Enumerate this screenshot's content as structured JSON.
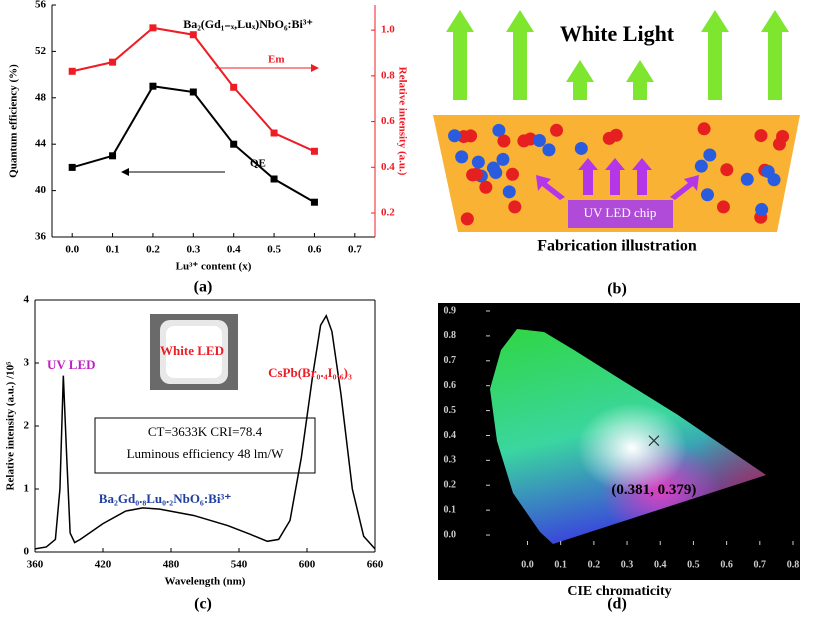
{
  "chart_data": [
    {
      "type": "line",
      "label": "(a)",
      "title": "Ba₂(Gd₁₋ₓ,Luₓ)NbO₆:Bi³⁺",
      "xlabel": "Lu³⁺ content (x)",
      "ylabel": "Quantum efficiency (%)",
      "y2label": "Relative intensity (a.u.)",
      "x": [
        0,
        0.1,
        0.2,
        0.3,
        0.4,
        0.5,
        0.6
      ],
      "series": [
        {
          "name": "QE",
          "color": "#000000",
          "values": [
            42,
            43,
            49,
            48.5,
            44,
            41,
            39
          ]
        },
        {
          "name": "Em",
          "color": "#ee1c25",
          "axis": "y2",
          "values": [
            0.82,
            0.86,
            1.01,
            0.98,
            0.75,
            0.55,
            0.47
          ]
        }
      ],
      "xlim": [
        -0.05,
        0.75
      ],
      "xticks": [
        {
          "value": 0,
          "label": "0.0"
        },
        0.1,
        0.2,
        0.3,
        0.4,
        0.5,
        0.6,
        0.7
      ],
      "ylim": [
        36,
        56
      ],
      "yticks": [
        36,
        40,
        44,
        48,
        52,
        56
      ],
      "y2lim": [
        0.095,
        1.11
      ],
      "y2ticks": [
        0.2,
        0.4,
        0.6,
        0.8,
        {
          "value": 1,
          "label": "1.0"
        }
      ]
    },
    {
      "type": "line",
      "label": "(c)",
      "xlabel": "Wavelength (nm)",
      "ylabel": "Relative intensity (a.u.) /10⁵",
      "annotations": [
        {
          "text": "UV LED",
          "color": "#c21fc2"
        },
        {
          "text": "White LED",
          "color": "#ee1c25"
        },
        {
          "text": "CsPb(Br₀.₄I₀.₆)₃",
          "color": "#ee1c25"
        },
        {
          "text": "CT=3633K CRI=78.4",
          "color": "#000000"
        },
        {
          "text": "Luminous efficiency 48 lm/W",
          "color": "#000000"
        },
        {
          "text": "Ba₂Gd₀.₈Lu₀.₂NbO₆:Bi³⁺",
          "color": "#1f3fa0"
        }
      ],
      "x": [
        360,
        370,
        378,
        382,
        385,
        388,
        391,
        395,
        400,
        420,
        440,
        455,
        470,
        500,
        530,
        550,
        565,
        575,
        585,
        595,
        605,
        612,
        617,
        622,
        630,
        640,
        650,
        660
      ],
      "series": [
        {
          "color": "#000000",
          "values": [
            0.05,
            0.08,
            0.2,
            1.0,
            2.8,
            1.5,
            0.3,
            0.15,
            0.2,
            0.45,
            0.65,
            0.7,
            0.68,
            0.58,
            0.42,
            0.28,
            0.17,
            0.2,
            0.5,
            1.5,
            2.8,
            3.6,
            3.75,
            3.5,
            2.5,
            1.0,
            0.25,
            0.05
          ]
        }
      ],
      "xlim": [
        360,
        660
      ],
      "xticks": [
        360,
        420,
        480,
        540,
        600,
        660
      ],
      "ylim": [
        0,
        4
      ],
      "yticks": [
        0,
        1,
        2,
        3,
        4
      ]
    },
    {
      "type": "scatter",
      "label": "(d)",
      "xlabel": "CIE chromaticity",
      "x": [
        0.381
      ],
      "values": [
        0.379
      ],
      "value_labels": [
        "(0.381, 0.379)"
      ],
      "color": "#333333",
      "xlim": [
        -0.125,
        0.8
      ],
      "xticks": [
        {
          "value": 0,
          "label": "0.0"
        },
        0.1,
        0.2,
        0.3,
        0.4,
        0.5,
        0.6,
        0.7,
        0.8
      ],
      "ylim": [
        -0.04,
        0.9
      ],
      "yticks": [
        {
          "value": 0,
          "label": "0.0"
        },
        0.1,
        0.2,
        0.3,
        0.4,
        0.5,
        0.6,
        0.7,
        0.8,
        0.9
      ]
    }
  ],
  "illustration": {
    "title": "White  Light",
    "chip": "UV LED chip",
    "caption": "Fabrication illustration",
    "label": "(b)"
  }
}
